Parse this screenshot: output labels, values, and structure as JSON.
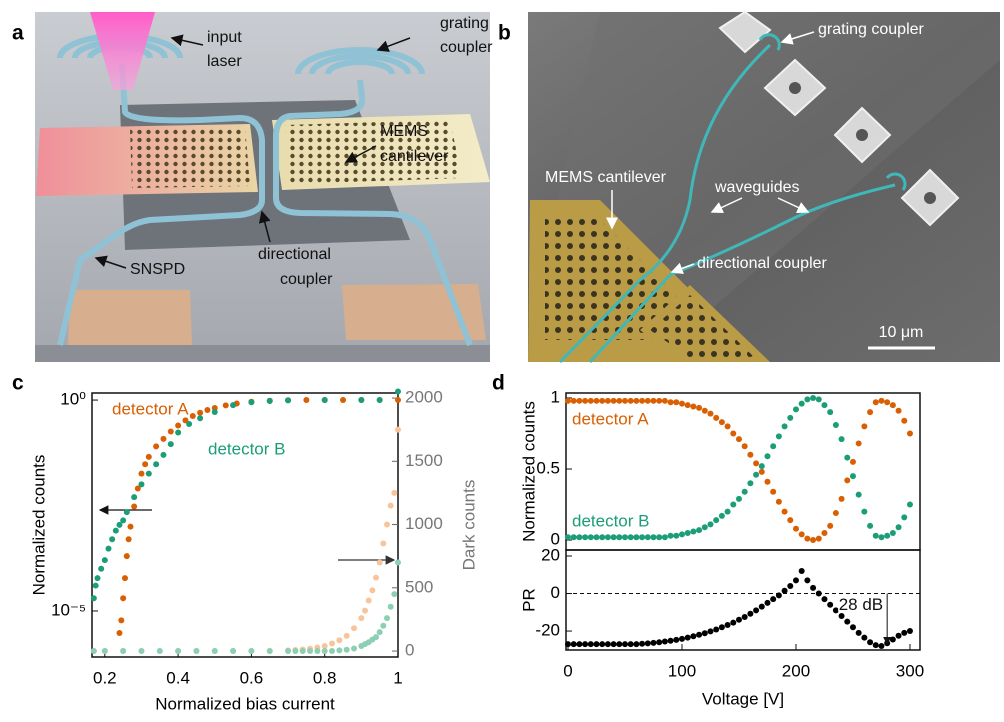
{
  "panel_labels": [
    "a",
    "b",
    "c",
    "d"
  ],
  "panel_a": {
    "labels": [
      [
        "input",
        "laser"
      ],
      [
        "grating",
        "coupler"
      ],
      [
        "MEMS",
        "cantilever"
      ],
      [
        "SNSPD"
      ],
      [
        "directional",
        "coupler"
      ]
    ]
  },
  "panel_b": {
    "labels": [
      "grating coupler",
      "MEMS cantilever",
      "waveguides",
      "directional coupler"
    ],
    "scale_bar": "10 μm"
  },
  "chart_data": [
    {
      "type": "scatter",
      "ylabel": "Normalized counts",
      "y2label": "Dark counts",
      "xlabel": "Normalized bias current",
      "xlim": [
        0.165,
        1
      ],
      "xticks": [
        0.2,
        0.4,
        0.6,
        0.8,
        1
      ],
      "yscale": "log",
      "ylim": [
        8.1e-07,
        1.47
      ],
      "yticks": [
        {
          "value": 1,
          "label": "10⁰"
        },
        {
          "value": 1e-05,
          "label": "10⁻⁵"
        }
      ],
      "y2lim": [
        -47,
        2040
      ],
      "y2ticks": [
        0,
        500,
        1000,
        1500,
        2000
      ],
      "series": [
        {
          "name": "detector A",
          "color": "#d95f02",
          "x": [
            0.24,
            0.245,
            0.25,
            0.255,
            0.26,
            0.265,
            0.27,
            0.28,
            0.29,
            0.3,
            0.31,
            0.32,
            0.34,
            0.36,
            0.38,
            0.4,
            0.42,
            0.44,
            0.46,
            0.48,
            0.5,
            0.53,
            0.56,
            0.6,
            0.65,
            0.7,
            0.75,
            0.8,
            0.85,
            0.9,
            0.95,
            1
          ],
          "values": [
            3e-06,
            6e-06,
            2e-05,
            6e-05,
            0.0002,
            0.0005,
            0.001,
            0.003,
            0.008,
            0.018,
            0.03,
            0.045,
            0.08,
            0.12,
            0.18,
            0.25,
            0.33,
            0.42,
            0.5,
            0.58,
            0.65,
            0.75,
            0.83,
            0.91,
            0.96,
            0.99,
            1,
            1,
            1,
            1,
            1,
            1
          ]
        },
        {
          "name": "detector B",
          "color": "#1b9e77",
          "x": [
            0.17,
            0.175,
            0.18,
            0.19,
            0.2,
            0.21,
            0.22,
            0.23,
            0.24,
            0.25,
            0.26,
            0.28,
            0.3,
            0.32,
            0.34,
            0.36,
            0.38,
            0.4,
            0.43,
            0.46,
            0.5,
            0.55,
            0.6,
            0.65,
            0.7,
            0.8,
            0.9,
            0.95,
            1
          ],
          "values": [
            2e-05,
            4e-05,
            6e-05,
            0.0001,
            0.00016,
            0.0003,
            0.0005,
            0.0008,
            0.0011,
            0.0014,
            0.0022,
            0.005,
            0.01,
            0.018,
            0.03,
            0.05,
            0.09,
            0.17,
            0.27,
            0.37,
            0.52,
            0.76,
            0.89,
            0.95,
            0.98,
            1,
            1,
            1,
            1.6
          ]
        },
        {
          "color": "#f8c49c",
          "axis": "y2",
          "x": [
            0.17,
            0.2,
            0.25,
            0.3,
            0.35,
            0.4,
            0.45,
            0.5,
            0.55,
            0.6,
            0.65,
            0.7,
            0.72,
            0.74,
            0.76,
            0.78,
            0.8,
            0.82,
            0.84,
            0.86,
            0.88,
            0.9,
            0.91,
            0.92,
            0.93,
            0.94,
            0.95,
            0.96,
            0.97,
            0.98,
            0.99,
            1
          ],
          "values": [
            0,
            0,
            0,
            0,
            0,
            0,
            0,
            0,
            0,
            0,
            0,
            5,
            8,
            12,
            18,
            28,
            40,
            60,
            85,
            120,
            180,
            260,
            320,
            400,
            480,
            580,
            700,
            850,
            1000,
            1150,
            1250,
            1750
          ]
        },
        {
          "color": "#8ccfb3",
          "axis": "y2",
          "x": [
            0.17,
            0.2,
            0.25,
            0.3,
            0.35,
            0.4,
            0.45,
            0.5,
            0.55,
            0.6,
            0.65,
            0.7,
            0.72,
            0.74,
            0.76,
            0.78,
            0.8,
            0.82,
            0.84,
            0.86,
            0.88,
            0.9,
            0.91,
            0.92,
            0.93,
            0.94,
            0.95,
            0.96,
            0.97,
            0.98,
            0.99,
            1
          ],
          "values": [
            0,
            0,
            0,
            0,
            0,
            0,
            0,
            0,
            0,
            0,
            0,
            0,
            0,
            0,
            0,
            0,
            0,
            0,
            5,
            10,
            20,
            40,
            55,
            70,
            90,
            110,
            150,
            200,
            260,
            350,
            450,
            700
          ]
        }
      ]
    },
    {
      "type": "scatter",
      "ylabel": "Normalized counts",
      "xlim": [
        -1.75,
        308.8
      ],
      "ylim": [
        -0.07,
        1.035
      ],
      "yticks": [
        0,
        0.5,
        1
      ],
      "x": [
        0,
        5,
        10,
        15,
        20,
        25,
        30,
        35,
        40,
        45,
        50,
        55,
        60,
        65,
        70,
        75,
        80,
        85,
        90,
        95,
        100,
        105,
        110,
        115,
        120,
        125,
        130,
        135,
        140,
        145,
        150,
        155,
        160,
        165,
        170,
        175,
        180,
        185,
        190,
        195,
        200,
        205,
        210,
        215,
        220,
        225,
        230,
        235,
        240,
        245,
        250,
        255,
        260,
        265,
        270,
        275,
        280,
        285,
        290,
        295,
        300
      ],
      "series": [
        {
          "name": "detector A",
          "color": "#d95f02",
          "values": [
            0.98,
            0.98,
            0.98,
            0.98,
            0.98,
            0.98,
            0.98,
            0.98,
            0.98,
            0.98,
            0.98,
            0.98,
            0.98,
            0.98,
            0.98,
            0.98,
            0.98,
            0.98,
            0.97,
            0.97,
            0.96,
            0.95,
            0.94,
            0.93,
            0.91,
            0.89,
            0.86,
            0.83,
            0.8,
            0.75,
            0.71,
            0.66,
            0.6,
            0.54,
            0.48,
            0.41,
            0.34,
            0.27,
            0.2,
            0.14,
            0.08,
            0.04,
            0.01,
            0,
            0.01,
            0.05,
            0.1,
            0.19,
            0.29,
            0.42,
            0.55,
            0.68,
            0.8,
            0.9,
            0.97,
            0.98,
            0.97,
            0.95,
            0.91,
            0.84,
            0.75
          ]
        },
        {
          "name": "detector B",
          "color": "#1b9e77",
          "values": [
            0.02,
            0.02,
            0.02,
            0.02,
            0.02,
            0.02,
            0.02,
            0.02,
            0.02,
            0.02,
            0.02,
            0.02,
            0.02,
            0.02,
            0.02,
            0.02,
            0.02,
            0.02,
            0.03,
            0.03,
            0.04,
            0.05,
            0.06,
            0.07,
            0.09,
            0.11,
            0.14,
            0.17,
            0.2,
            0.25,
            0.29,
            0.34,
            0.4,
            0.46,
            0.52,
            0.59,
            0.66,
            0.73,
            0.8,
            0.86,
            0.92,
            0.96,
            0.99,
            1,
            0.99,
            0.95,
            0.9,
            0.81,
            0.71,
            0.58,
            0.45,
            0.32,
            0.2,
            0.1,
            0.03,
            0.02,
            0.03,
            0.05,
            0.09,
            0.16,
            0.25
          ]
        }
      ]
    },
    {
      "type": "scatter",
      "ylabel": "PR",
      "xlabel": "Voltage [V]",
      "xlim": [
        -1.75,
        308.8
      ],
      "xticks": [
        0,
        100,
        200,
        300
      ],
      "ylim": [
        -30.1,
        23.2
      ],
      "yticks": [
        -20,
        0,
        20
      ],
      "reference_line": 0,
      "annotation": {
        "text": "28 dB",
        "x": 280,
        "from": 0,
        "to": -28
      },
      "x": [
        0,
        5,
        10,
        15,
        20,
        25,
        30,
        35,
        40,
        45,
        50,
        55,
        60,
        65,
        70,
        75,
        80,
        85,
        90,
        95,
        100,
        105,
        110,
        115,
        120,
        125,
        130,
        135,
        140,
        145,
        150,
        155,
        160,
        165,
        170,
        175,
        180,
        185,
        190,
        195,
        200,
        205,
        210,
        215,
        220,
        225,
        230,
        235,
        240,
        245,
        250,
        255,
        260,
        265,
        270,
        275,
        280,
        285,
        290,
        295,
        300
      ],
      "series": [
        {
          "color": "#000000",
          "values": [
            -27,
            -27,
            -27,
            -27,
            -27,
            -27,
            -27,
            -27,
            -27,
            -27,
            -27,
            -27,
            -27,
            -26.8,
            -26.6,
            -26.3,
            -26,
            -25.6,
            -25.2,
            -24.7,
            -24.2,
            -23.5,
            -22.8,
            -22,
            -21.2,
            -20.2,
            -19.2,
            -18,
            -16.8,
            -15.5,
            -14,
            -12.5,
            -10.8,
            -9,
            -7,
            -5,
            -3,
            -1,
            1.5,
            4,
            7,
            12,
            7,
            3,
            0,
            -3,
            -6,
            -9,
            -12,
            -15,
            -18,
            -21,
            -23.5,
            -26,
            -27.5,
            -28,
            -26.5,
            -24.5,
            -22.5,
            -21,
            -20
          ]
        }
      ]
    }
  ]
}
